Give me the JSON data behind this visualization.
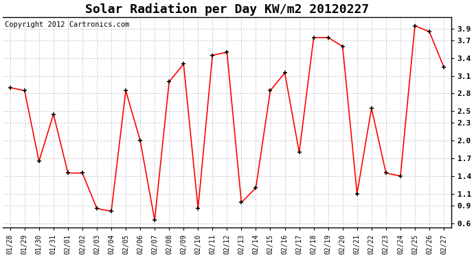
{
  "title": "Solar Radiation per Day KW/m2 20120227",
  "copyright": "Copyright 2012 Cartronics.com",
  "dates": [
    "01/28",
    "01/29",
    "01/30",
    "01/31",
    "02/01",
    "02/02",
    "02/03",
    "02/04",
    "02/05",
    "02/06",
    "02/07",
    "02/08",
    "02/09",
    "02/10",
    "02/11",
    "02/12",
    "02/13",
    "02/14",
    "02/15",
    "02/16",
    "02/17",
    "02/18",
    "02/19",
    "02/20",
    "02/21",
    "02/22",
    "02/23",
    "02/24",
    "02/25",
    "02/26",
    "02/27"
  ],
  "values": [
    2.9,
    2.85,
    1.65,
    2.45,
    1.45,
    1.45,
    0.85,
    0.8,
    2.85,
    2.0,
    0.65,
    3.0,
    3.3,
    0.85,
    3.45,
    3.5,
    0.95,
    1.2,
    2.85,
    3.15,
    1.8,
    3.75,
    3.75,
    3.6,
    1.1,
    2.55,
    1.45,
    1.4,
    3.95,
    3.85,
    3.25
  ],
  "line_color": "#FF0000",
  "marker_color": "#000000",
  "bg_color": "#FFFFFF",
  "grid_color": "#CCCCCC",
  "yticks": [
    0.6,
    0.9,
    1.1,
    1.4,
    1.7,
    2.0,
    2.3,
    2.5,
    2.8,
    3.1,
    3.4,
    3.7,
    3.9
  ],
  "ylim": [
    0.52,
    4.1
  ],
  "title_fontsize": 13,
  "copyright_fontsize": 7.5,
  "tick_fontsize": 7,
  "ytick_fontsize": 8
}
